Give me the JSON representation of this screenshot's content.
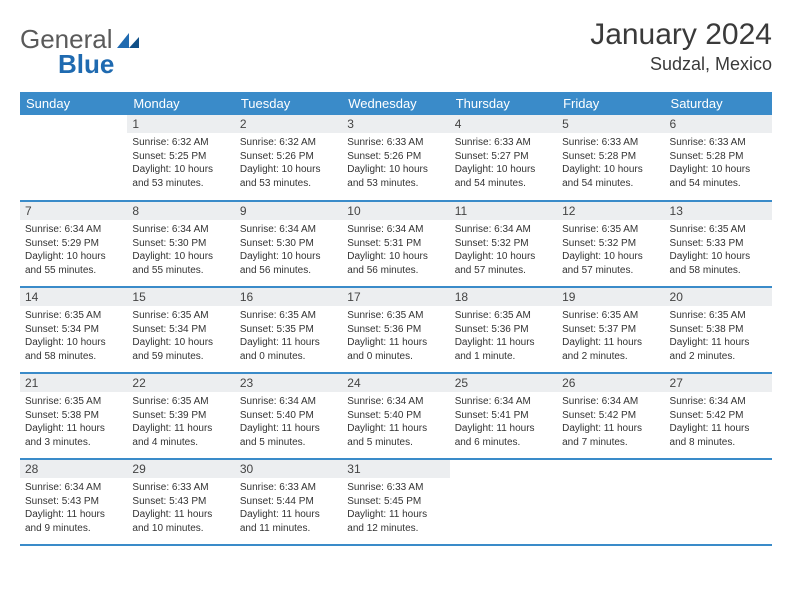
{
  "logo": {
    "text1": "General",
    "text2": "Blue"
  },
  "title": "January 2024",
  "location": "Sudzal, Mexico",
  "colors": {
    "header_bg": "#3a8bc9",
    "header_fg": "#ffffff",
    "daynum_bg": "#eceef0",
    "rule": "#3a8bc9",
    "logo_blue": "#1f6ab0"
  },
  "dow": [
    "Sunday",
    "Monday",
    "Tuesday",
    "Wednesday",
    "Thursday",
    "Friday",
    "Saturday"
  ],
  "weeks": [
    [
      {
        "n": "",
        "l1": "",
        "l2": "",
        "l3": "",
        "l4": ""
      },
      {
        "n": "1",
        "l1": "Sunrise: 6:32 AM",
        "l2": "Sunset: 5:25 PM",
        "l3": "Daylight: 10 hours",
        "l4": "and 53 minutes."
      },
      {
        "n": "2",
        "l1": "Sunrise: 6:32 AM",
        "l2": "Sunset: 5:26 PM",
        "l3": "Daylight: 10 hours",
        "l4": "and 53 minutes."
      },
      {
        "n": "3",
        "l1": "Sunrise: 6:33 AM",
        "l2": "Sunset: 5:26 PM",
        "l3": "Daylight: 10 hours",
        "l4": "and 53 minutes."
      },
      {
        "n": "4",
        "l1": "Sunrise: 6:33 AM",
        "l2": "Sunset: 5:27 PM",
        "l3": "Daylight: 10 hours",
        "l4": "and 54 minutes."
      },
      {
        "n": "5",
        "l1": "Sunrise: 6:33 AM",
        "l2": "Sunset: 5:28 PM",
        "l3": "Daylight: 10 hours",
        "l4": "and 54 minutes."
      },
      {
        "n": "6",
        "l1": "Sunrise: 6:33 AM",
        "l2": "Sunset: 5:28 PM",
        "l3": "Daylight: 10 hours",
        "l4": "and 54 minutes."
      }
    ],
    [
      {
        "n": "7",
        "l1": "Sunrise: 6:34 AM",
        "l2": "Sunset: 5:29 PM",
        "l3": "Daylight: 10 hours",
        "l4": "and 55 minutes."
      },
      {
        "n": "8",
        "l1": "Sunrise: 6:34 AM",
        "l2": "Sunset: 5:30 PM",
        "l3": "Daylight: 10 hours",
        "l4": "and 55 minutes."
      },
      {
        "n": "9",
        "l1": "Sunrise: 6:34 AM",
        "l2": "Sunset: 5:30 PM",
        "l3": "Daylight: 10 hours",
        "l4": "and 56 minutes."
      },
      {
        "n": "10",
        "l1": "Sunrise: 6:34 AM",
        "l2": "Sunset: 5:31 PM",
        "l3": "Daylight: 10 hours",
        "l4": "and 56 minutes."
      },
      {
        "n": "11",
        "l1": "Sunrise: 6:34 AM",
        "l2": "Sunset: 5:32 PM",
        "l3": "Daylight: 10 hours",
        "l4": "and 57 minutes."
      },
      {
        "n": "12",
        "l1": "Sunrise: 6:35 AM",
        "l2": "Sunset: 5:32 PM",
        "l3": "Daylight: 10 hours",
        "l4": "and 57 minutes."
      },
      {
        "n": "13",
        "l1": "Sunrise: 6:35 AM",
        "l2": "Sunset: 5:33 PM",
        "l3": "Daylight: 10 hours",
        "l4": "and 58 minutes."
      }
    ],
    [
      {
        "n": "14",
        "l1": "Sunrise: 6:35 AM",
        "l2": "Sunset: 5:34 PM",
        "l3": "Daylight: 10 hours",
        "l4": "and 58 minutes."
      },
      {
        "n": "15",
        "l1": "Sunrise: 6:35 AM",
        "l2": "Sunset: 5:34 PM",
        "l3": "Daylight: 10 hours",
        "l4": "and 59 minutes."
      },
      {
        "n": "16",
        "l1": "Sunrise: 6:35 AM",
        "l2": "Sunset: 5:35 PM",
        "l3": "Daylight: 11 hours",
        "l4": "and 0 minutes."
      },
      {
        "n": "17",
        "l1": "Sunrise: 6:35 AM",
        "l2": "Sunset: 5:36 PM",
        "l3": "Daylight: 11 hours",
        "l4": "and 0 minutes."
      },
      {
        "n": "18",
        "l1": "Sunrise: 6:35 AM",
        "l2": "Sunset: 5:36 PM",
        "l3": "Daylight: 11 hours",
        "l4": "and 1 minute."
      },
      {
        "n": "19",
        "l1": "Sunrise: 6:35 AM",
        "l2": "Sunset: 5:37 PM",
        "l3": "Daylight: 11 hours",
        "l4": "and 2 minutes."
      },
      {
        "n": "20",
        "l1": "Sunrise: 6:35 AM",
        "l2": "Sunset: 5:38 PM",
        "l3": "Daylight: 11 hours",
        "l4": "and 2 minutes."
      }
    ],
    [
      {
        "n": "21",
        "l1": "Sunrise: 6:35 AM",
        "l2": "Sunset: 5:38 PM",
        "l3": "Daylight: 11 hours",
        "l4": "and 3 minutes."
      },
      {
        "n": "22",
        "l1": "Sunrise: 6:35 AM",
        "l2": "Sunset: 5:39 PM",
        "l3": "Daylight: 11 hours",
        "l4": "and 4 minutes."
      },
      {
        "n": "23",
        "l1": "Sunrise: 6:34 AM",
        "l2": "Sunset: 5:40 PM",
        "l3": "Daylight: 11 hours",
        "l4": "and 5 minutes."
      },
      {
        "n": "24",
        "l1": "Sunrise: 6:34 AM",
        "l2": "Sunset: 5:40 PM",
        "l3": "Daylight: 11 hours",
        "l4": "and 5 minutes."
      },
      {
        "n": "25",
        "l1": "Sunrise: 6:34 AM",
        "l2": "Sunset: 5:41 PM",
        "l3": "Daylight: 11 hours",
        "l4": "and 6 minutes."
      },
      {
        "n": "26",
        "l1": "Sunrise: 6:34 AM",
        "l2": "Sunset: 5:42 PM",
        "l3": "Daylight: 11 hours",
        "l4": "and 7 minutes."
      },
      {
        "n": "27",
        "l1": "Sunrise: 6:34 AM",
        "l2": "Sunset: 5:42 PM",
        "l3": "Daylight: 11 hours",
        "l4": "and 8 minutes."
      }
    ],
    [
      {
        "n": "28",
        "l1": "Sunrise: 6:34 AM",
        "l2": "Sunset: 5:43 PM",
        "l3": "Daylight: 11 hours",
        "l4": "and 9 minutes."
      },
      {
        "n": "29",
        "l1": "Sunrise: 6:33 AM",
        "l2": "Sunset: 5:43 PM",
        "l3": "Daylight: 11 hours",
        "l4": "and 10 minutes."
      },
      {
        "n": "30",
        "l1": "Sunrise: 6:33 AM",
        "l2": "Sunset: 5:44 PM",
        "l3": "Daylight: 11 hours",
        "l4": "and 11 minutes."
      },
      {
        "n": "31",
        "l1": "Sunrise: 6:33 AM",
        "l2": "Sunset: 5:45 PM",
        "l3": "Daylight: 11 hours",
        "l4": "and 12 minutes."
      },
      {
        "n": "",
        "l1": "",
        "l2": "",
        "l3": "",
        "l4": ""
      },
      {
        "n": "",
        "l1": "",
        "l2": "",
        "l3": "",
        "l4": ""
      },
      {
        "n": "",
        "l1": "",
        "l2": "",
        "l3": "",
        "l4": ""
      }
    ]
  ]
}
